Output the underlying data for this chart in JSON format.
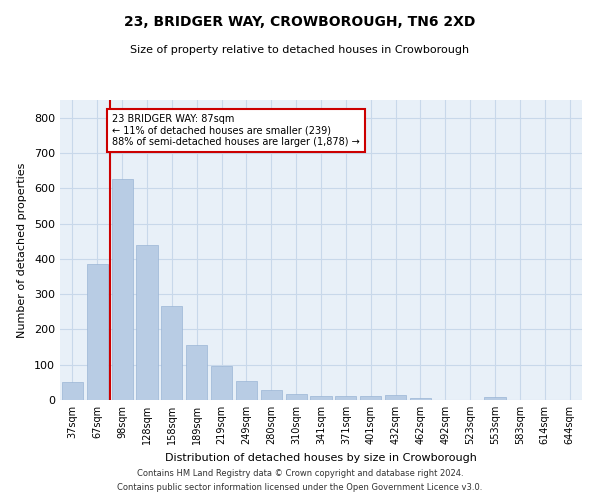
{
  "title1": "23, BRIDGER WAY, CROWBOROUGH, TN6 2XD",
  "title2": "Size of property relative to detached houses in Crowborough",
  "xlabel": "Distribution of detached houses by size in Crowborough",
  "ylabel": "Number of detached properties",
  "categories": [
    "37sqm",
    "67sqm",
    "98sqm",
    "128sqm",
    "158sqm",
    "189sqm",
    "219sqm",
    "249sqm",
    "280sqm",
    "310sqm",
    "341sqm",
    "371sqm",
    "401sqm",
    "432sqm",
    "462sqm",
    "492sqm",
    "523sqm",
    "553sqm",
    "583sqm",
    "614sqm",
    "644sqm"
  ],
  "values": [
    50,
    385,
    625,
    440,
    265,
    155,
    97,
    55,
    28,
    17,
    10,
    10,
    10,
    15,
    7,
    0,
    0,
    8,
    0,
    0,
    0
  ],
  "bar_color": "#b8cce4",
  "bar_edge_color": "#9ab5d5",
  "grid_color": "#c8d8ea",
  "bg_color": "#e8f0f8",
  "vline_color": "#cc0000",
  "annotation_text": "23 BRIDGER WAY: 87sqm\n← 11% of detached houses are smaller (239)\n88% of semi-detached houses are larger (1,878) →",
  "annotation_box_facecolor": "#ffffff",
  "annotation_box_edgecolor": "#cc0000",
  "ylim": [
    0,
    850
  ],
  "yticks": [
    0,
    100,
    200,
    300,
    400,
    500,
    600,
    700,
    800
  ],
  "footer1": "Contains HM Land Registry data © Crown copyright and database right 2024.",
  "footer2": "Contains public sector information licensed under the Open Government Licence v3.0."
}
